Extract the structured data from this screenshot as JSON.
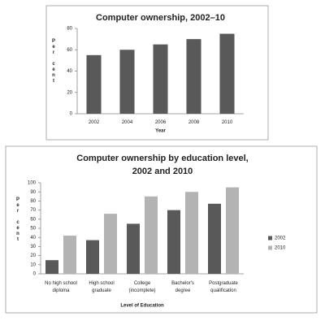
{
  "chart_data": [
    {
      "type": "bar",
      "title": "Computer ownership, 2002–10",
      "x_label": "Year",
      "y_label": "Per cent",
      "categories": [
        "2002",
        "2004",
        "2006",
        "2008",
        "2010"
      ],
      "values": [
        55,
        60,
        65,
        70,
        75
      ],
      "color": "#595959",
      "ylim": [
        0,
        80
      ],
      "yticks": [
        0,
        20,
        40,
        60,
        80
      ],
      "grid": false
    },
    {
      "type": "grouped-bar",
      "title": "Computer ownership by education level, 2002 and 2010",
      "x_label": "Level of Education",
      "y_label": "Per cent",
      "categories": [
        "No high school diploma",
        "High school graduate",
        "College (incomplete)",
        "Bachelor's degree",
        "Postgraduate qualification"
      ],
      "series": [
        {
          "name": "2002",
          "color": "#595959",
          "values": [
            15,
            37,
            55,
            70,
            77
          ]
        },
        {
          "name": "2010",
          "color": "#b3b3b3",
          "values": [
            42,
            66,
            85,
            90,
            95
          ]
        }
      ],
      "ylim": [
        0,
        100
      ],
      "yticks": [
        0,
        10,
        20,
        30,
        40,
        50,
        60,
        70,
        80,
        90,
        100
      ],
      "grid": false,
      "legend": "right"
    }
  ]
}
